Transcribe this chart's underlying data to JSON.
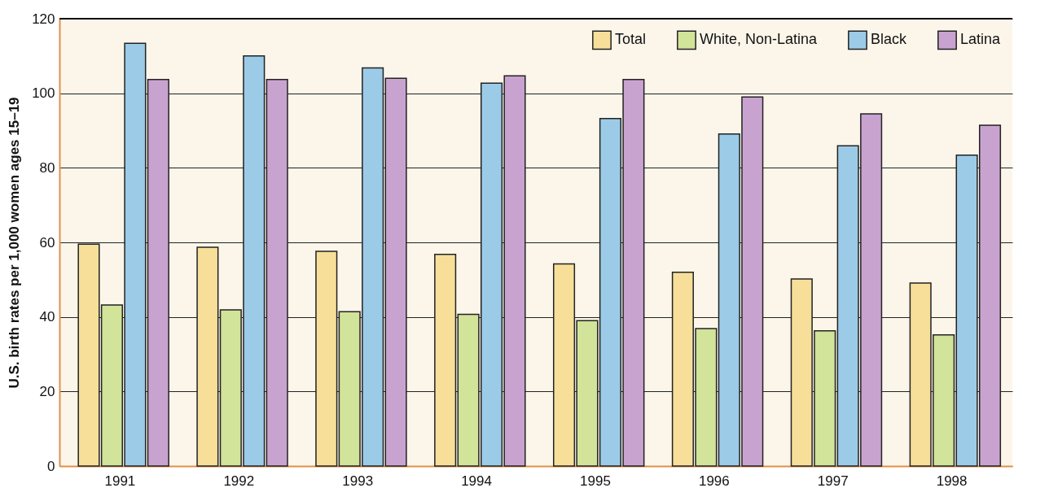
{
  "chart_data": {
    "type": "bar",
    "ylabel": "U.S. birth rates per 1,000 women ages 15–19",
    "categories": [
      "1991",
      "1992",
      "1993",
      "1994",
      "1995",
      "1996",
      "1997",
      "1998"
    ],
    "series": [
      {
        "name": "Total",
        "color": "#f7df9a",
        "values": [
          59.5,
          58.7,
          57.6,
          56.8,
          54.2,
          52,
          50.2,
          49.1
        ]
      },
      {
        "name": "White, Non-Latina",
        "color": "#d2e39a",
        "values": [
          43.2,
          41.9,
          41.4,
          40.7,
          39,
          36.9,
          36.3,
          35.2
        ]
      },
      {
        "name": "Black",
        "color": "#9ccbe8",
        "values": [
          113.4,
          110,
          106.8,
          102.7,
          93.2,
          89.1,
          85.9,
          83.4
        ]
      },
      {
        "name": "Latina",
        "color": "#c9a3d0",
        "values": [
          103.7,
          103.7,
          104,
          104.7,
          103.7,
          99,
          94.5,
          91.4
        ]
      }
    ],
    "ylim": [
      0,
      120
    ],
    "yticks": [
      0,
      20,
      40,
      60,
      80,
      100,
      120
    ],
    "grid": "y",
    "legend": "top right"
  }
}
